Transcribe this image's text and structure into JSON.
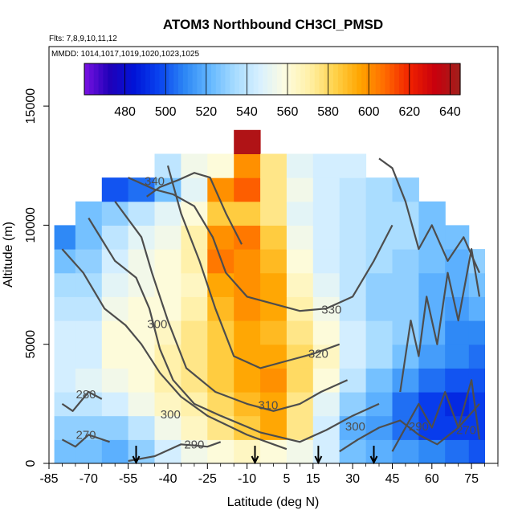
{
  "chart_data": {
    "type": "heatmap",
    "title": "ATOM3 Northbound CH3Cl_PMSD",
    "flights_note": "Flts: 7,8,9,10,11,12",
    "dates_note": "MMDD: 1014,1017,1019,1020,1023,1025",
    "xlabel": "Latitude (deg N)",
    "ylabel": "Altitude (m)",
    "xlim": [
      -85,
      85
    ],
    "ylim": [
      0,
      17500
    ],
    "x_major_ticks": [
      -85,
      -70,
      -55,
      -40,
      -25,
      -10,
      5,
      15,
      30,
      45,
      60,
      75
    ],
    "x_tick_labels": [
      "-85",
      "-70",
      "-55",
      "-40",
      "-25",
      "-10",
      "5",
      "15",
      "30",
      "45",
      "60",
      "75"
    ],
    "y_ticks": [
      0,
      5000,
      10000,
      15000
    ],
    "y_tick_labels": [
      "0",
      "5000",
      "10000",
      "15000"
    ],
    "colorbar": {
      "min": 460,
      "max": 645,
      "ticks": [
        480,
        500,
        520,
        540,
        560,
        580,
        600,
        620,
        640
      ],
      "tick_labels": [
        "480",
        "500",
        "520",
        "540",
        "560",
        "580",
        "600",
        "620",
        "640"
      ],
      "colors": [
        "#7a12e3",
        "#2000b8",
        "#0014d8",
        "#0a44f0",
        "#2c86f5",
        "#63b7ff",
        "#a6dbff",
        "#d8f0ff",
        "#fdfce0",
        "#fff0a6",
        "#ffd24a",
        "#ffa500",
        "#ff6a00",
        "#f02000",
        "#c8000d",
        "#a0201c"
      ]
    },
    "grid": false,
    "column_profiles": {
      "latitudes": [
        -80,
        -70,
        -60,
        -50,
        -40,
        -30,
        -20,
        -10,
        0,
        10,
        20,
        30,
        40,
        50,
        60,
        70,
        78
      ],
      "altitudes": [
        500,
        1500,
        2500,
        3500,
        4500,
        5500,
        6500,
        7500,
        8500,
        9500,
        10500,
        11500,
        12500,
        13500
      ],
      "values": [
        [
          525,
          530,
          540,
          545,
          545,
          545,
          540,
          535,
          525,
          510,
          null,
          null,
          null,
          null
        ],
        [
          525,
          530,
          540,
          550,
          545,
          545,
          540,
          535,
          530,
          525,
          525,
          null,
          null,
          null
        ],
        [
          520,
          530,
          545,
          555,
          560,
          560,
          555,
          550,
          545,
          540,
          530,
          500,
          null,
          null
        ],
        [
          530,
          540,
          555,
          560,
          560,
          560,
          560,
          555,
          555,
          550,
          540,
          505,
          null,
          null
        ],
        [
          545,
          555,
          565,
          570,
          570,
          565,
          560,
          560,
          560,
          555,
          550,
          525,
          540,
          null
        ],
        [
          555,
          565,
          570,
          575,
          575,
          575,
          570,
          565,
          570,
          570,
          560,
          550,
          555,
          null
        ],
        [
          560,
          575,
          580,
          585,
          585,
          585,
          590,
          595,
          605,
          600,
          585,
          600,
          560,
          null
        ],
        [
          565,
          585,
          590,
          595,
          595,
          595,
          600,
          600,
          600,
          605,
          585,
          610,
          600,
          640
        ],
        [
          560,
          595,
          595,
          600,
          595,
          590,
          595,
          595,
          590,
          585,
          575,
          575,
          575,
          null
        ],
        [
          555,
          575,
          575,
          580,
          580,
          575,
          570,
          565,
          560,
          555,
          550,
          555,
          550,
          null
        ],
        [
          545,
          545,
          550,
          560,
          565,
          560,
          555,
          550,
          545,
          545,
          545,
          545,
          545,
          null
        ],
        [
          525,
          520,
          530,
          540,
          545,
          545,
          540,
          540,
          540,
          540,
          540,
          540,
          545,
          null
        ],
        [
          520,
          515,
          520,
          525,
          535,
          535,
          530,
          530,
          535,
          535,
          535,
          535,
          null,
          null
        ],
        [
          515,
          505,
          505,
          515,
          525,
          530,
          530,
          530,
          530,
          535,
          535,
          530,
          null,
          null
        ],
        [
          510,
          495,
          495,
          505,
          515,
          520,
          520,
          520,
          525,
          525,
          525,
          null,
          null,
          null
        ],
        [
          505,
          495,
          490,
          500,
          510,
          510,
          515,
          520,
          520,
          525,
          null,
          null,
          null,
          null
        ],
        [
          500,
          495,
          495,
          500,
          505,
          510,
          520,
          525,
          530,
          null,
          null,
          null,
          null,
          null
        ]
      ]
    },
    "contour_labels": [
      {
        "text": "340",
        "lat": -45,
        "alt": 11850
      },
      {
        "text": "330",
        "lat": 22,
        "alt": 6450
      },
      {
        "text": "320",
        "lat": 17,
        "alt": 4600
      },
      {
        "text": "310",
        "lat": -2,
        "alt": 2450
      },
      {
        "text": "300",
        "lat": -44,
        "alt": 5850
      },
      {
        "text": "300",
        "lat": -39,
        "alt": 2050
      },
      {
        "text": "300",
        "lat": 31,
        "alt": 1550
      },
      {
        "text": "290",
        "lat": -30,
        "alt": 800
      },
      {
        "text": "290",
        "lat": 55,
        "alt": 1550
      },
      {
        "text": "280",
        "lat": -71,
        "alt": 2900
      },
      {
        "text": "270",
        "lat": -71,
        "alt": 1200
      },
      {
        "text": "270",
        "lat": 73,
        "alt": 1400
      }
    ],
    "contour_lines": [
      [
        [
          -80,
          9000
        ],
        [
          -72,
          8000
        ],
        [
          -64,
          6500
        ],
        [
          -56,
          5800
        ],
        [
          -50,
          5000
        ],
        [
          -43,
          3800
        ],
        [
          -35,
          2800
        ],
        [
          -25,
          2000
        ],
        [
          -10,
          1200
        ],
        [
          0,
          800
        ],
        [
          5,
          600
        ]
      ],
      [
        [
          -70,
          10300
        ],
        [
          -60,
          8500
        ],
        [
          -52,
          7800
        ],
        [
          -47,
          6500
        ],
        [
          -43,
          4800
        ],
        [
          -38,
          3500
        ],
        [
          -30,
          2500
        ],
        [
          -20,
          2000
        ],
        [
          -5,
          1300
        ],
        [
          10,
          900
        ],
        [
          20,
          1400
        ],
        [
          30,
          2000
        ],
        [
          40,
          2500
        ]
      ],
      [
        [
          -60,
          11000
        ],
        [
          -50,
          9500
        ],
        [
          -46,
          8000
        ],
        [
          -40,
          6000
        ],
        [
          -33,
          4000
        ],
        [
          -22,
          3000
        ],
        [
          -10,
          2500
        ],
        [
          0,
          2200
        ],
        [
          10,
          2500
        ],
        [
          18,
          3000
        ],
        [
          28,
          3500
        ]
      ],
      [
        [
          -40,
          12500
        ],
        [
          -35,
          10500
        ],
        [
          -28,
          8500
        ],
        [
          -22,
          6500
        ],
        [
          -15,
          4500
        ],
        [
          -5,
          4000
        ],
        [
          5,
          4300
        ],
        [
          15,
          4600
        ],
        [
          25,
          5000
        ]
      ],
      [
        [
          -55,
          12000
        ],
        [
          -45,
          11500
        ],
        [
          -38,
          11300
        ],
        [
          -30,
          10800
        ],
        [
          -23,
          9500
        ],
        [
          -18,
          8000
        ],
        [
          -10,
          7000
        ],
        [
          0,
          6700
        ],
        [
          10,
          6400
        ],
        [
          20,
          6500
        ],
        [
          30,
          7000
        ],
        [
          38,
          8500
        ],
        [
          45,
          10000
        ]
      ],
      [
        [
          -48,
          11200
        ],
        [
          -43,
          11600
        ],
        [
          -36,
          11900
        ],
        [
          -30,
          12200
        ],
        [
          -24,
          12000
        ],
        [
          -18,
          10500
        ],
        [
          -12,
          9200
        ]
      ],
      [
        [
          -80,
          2500
        ],
        [
          -76,
          2200
        ],
        [
          -70,
          3000
        ],
        [
          -65,
          2700
        ]
      ],
      [
        [
          -80,
          1000
        ],
        [
          -75,
          700
        ],
        [
          -70,
          1200
        ],
        [
          -62,
          900
        ]
      ],
      [
        [
          -55,
          100
        ],
        [
          -45,
          300
        ],
        [
          -35,
          800
        ],
        [
          -25,
          700
        ],
        [
          -20,
          900
        ]
      ],
      [
        [
          45,
          500
        ],
        [
          50,
          1500
        ],
        [
          55,
          2500
        ],
        [
          60,
          1500
        ],
        [
          65,
          3000
        ],
        [
          70,
          1500
        ],
        [
          75,
          3500
        ],
        [
          78,
          1000
        ]
      ],
      [
        [
          48,
          3000
        ],
        [
          52,
          6000
        ],
        [
          55,
          4500
        ],
        [
          58,
          7000
        ],
        [
          62,
          5000
        ],
        [
          66,
          8000
        ],
        [
          70,
          6000
        ],
        [
          75,
          9000
        ],
        [
          78,
          7000
        ]
      ],
      [
        [
          40,
          12800
        ],
        [
          45,
          12400
        ],
        [
          50,
          11000
        ],
        [
          55,
          9000
        ],
        [
          60,
          10000
        ],
        [
          66,
          8500
        ],
        [
          72,
          9500
        ],
        [
          78,
          8000
        ]
      ],
      [
        [
          25,
          500
        ],
        [
          32,
          1000
        ],
        [
          40,
          1500
        ],
        [
          48,
          1800
        ],
        [
          55,
          1200
        ],
        [
          62,
          800
        ],
        [
          70,
          1500
        ],
        [
          78,
          2500
        ]
      ]
    ],
    "arrow_latitudes": [
      -52,
      -7,
      17,
      38
    ]
  }
}
